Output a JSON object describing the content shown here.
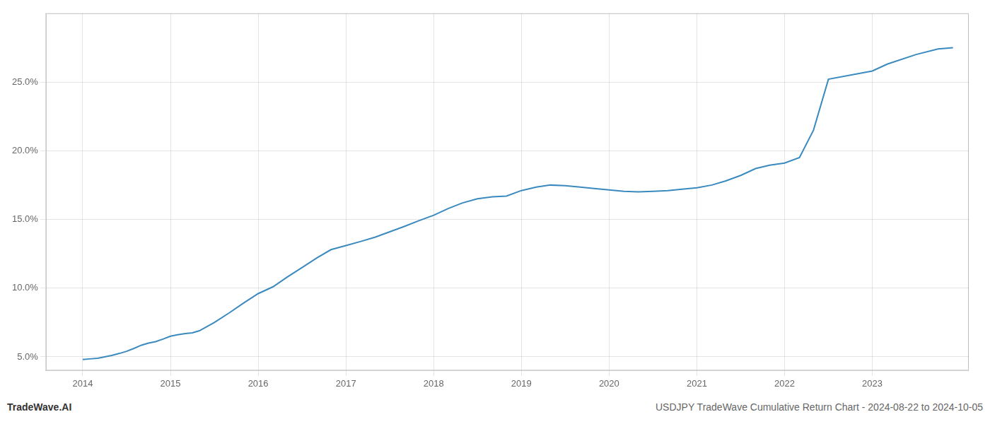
{
  "chart_data": {
    "type": "line",
    "x": [
      2014.0,
      2014.08,
      2014.17,
      2014.25,
      2014.33,
      2014.42,
      2014.5,
      2014.58,
      2014.67,
      2014.75,
      2014.83,
      2014.92,
      2015.0,
      2015.08,
      2015.17,
      2015.25,
      2015.33,
      2015.5,
      2015.67,
      2015.83,
      2016.0,
      2016.17,
      2016.33,
      2016.5,
      2016.67,
      2016.83,
      2017.0,
      2017.17,
      2017.33,
      2017.5,
      2017.67,
      2017.83,
      2018.0,
      2018.17,
      2018.33,
      2018.5,
      2018.67,
      2018.83,
      2019.0,
      2019.17,
      2019.33,
      2019.5,
      2019.67,
      2019.83,
      2020.0,
      2020.17,
      2020.33,
      2020.5,
      2020.67,
      2020.83,
      2021.0,
      2021.17,
      2021.33,
      2021.5,
      2021.67,
      2021.83,
      2022.0,
      2022.17,
      2022.33,
      2022.5,
      2023.0,
      2023.17,
      2023.5,
      2023.75,
      2023.92
    ],
    "values": [
      4.8,
      4.85,
      4.9,
      5.0,
      5.1,
      5.25,
      5.4,
      5.6,
      5.85,
      6.0,
      6.1,
      6.3,
      6.5,
      6.6,
      6.7,
      6.75,
      6.9,
      7.5,
      8.2,
      8.9,
      9.6,
      10.1,
      10.8,
      11.5,
      12.2,
      12.8,
      13.1,
      13.4,
      13.7,
      14.1,
      14.5,
      14.9,
      15.3,
      15.8,
      16.2,
      16.5,
      16.65,
      16.7,
      17.1,
      17.35,
      17.5,
      17.45,
      17.35,
      17.25,
      17.15,
      17.05,
      17.0,
      17.05,
      17.1,
      17.2,
      17.3,
      17.5,
      17.8,
      18.2,
      18.7,
      18.95,
      19.1,
      19.5,
      21.5,
      25.2,
      25.8,
      26.3,
      27.0,
      27.4,
      27.5
    ],
    "color": "#3a8abf",
    "xlim": [
      2013.58,
      2024.1
    ],
    "xticks": [
      2014,
      2015,
      2016,
      2017,
      2018,
      2019,
      2020,
      2021,
      2022,
      2023
    ],
    "ylim": [
      4.0,
      30.0
    ],
    "yticks": [
      {
        "value": 5.0,
        "label": "5.0%"
      },
      {
        "value": 10.0,
        "label": "10.0%"
      },
      {
        "value": 15.0,
        "label": "15.0%"
      },
      {
        "value": 20.0,
        "label": "20.0%"
      },
      {
        "value": 25.0,
        "label": "25.0%"
      }
    ],
    "grid": true,
    "annotations": [
      "TradeWave.AI",
      "USDJPY TradeWave Cumulative Return Chart - 2024-08-22 to 2024-10-05"
    ]
  }
}
